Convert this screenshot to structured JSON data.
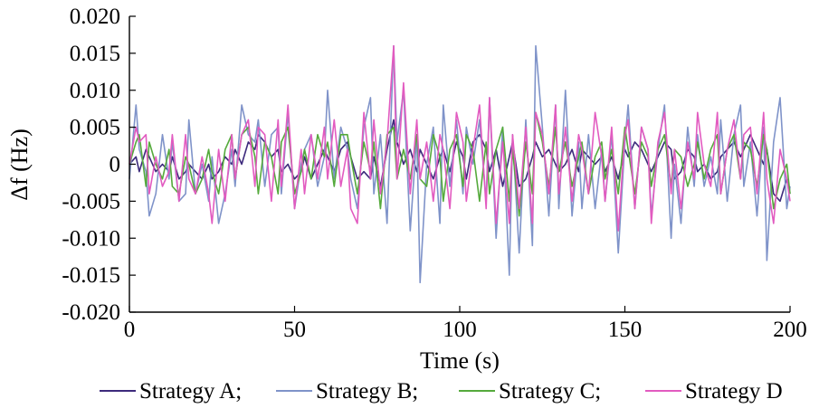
{
  "chart_data": {
    "type": "line",
    "xlabel": "Time (s)",
    "ylabel": "Δf (Hz)",
    "xlim": [
      0,
      200
    ],
    "ylim": [
      -0.02,
      0.02
    ],
    "x_ticks": [
      "0",
      "50",
      "100",
      "150",
      "200"
    ],
    "y_ticks": [
      "-0.020",
      "-0.015",
      "-0.010",
      "-0.005",
      "0",
      "0.005",
      "0.010",
      "0.015",
      "0.020"
    ],
    "grid": false,
    "legend_position": "bottom",
    "x": [
      0,
      2,
      3,
      5,
      6,
      8,
      10,
      12,
      13,
      15,
      17,
      18,
      20,
      22,
      24,
      25,
      27,
      29,
      31,
      32,
      34,
      36,
      38,
      39,
      41,
      43,
      45,
      46,
      48,
      50,
      52,
      53,
      55,
      57,
      59,
      60,
      62,
      64,
      66,
      67,
      69,
      71,
      73,
      74,
      76,
      78,
      80,
      81,
      83,
      85,
      87,
      88,
      90,
      92,
      94,
      95,
      97,
      99,
      101,
      102,
      104,
      106,
      108,
      109,
      111,
      113,
      115,
      116,
      118,
      120,
      122,
      123,
      125,
      127,
      129,
      130,
      132,
      134,
      136,
      137,
      139,
      141,
      143,
      144,
      146,
      148,
      150,
      151,
      153,
      155,
      157,
      158,
      160,
      162,
      164,
      165,
      167,
      169,
      171,
      172,
      174,
      176,
      178,
      179,
      181,
      183,
      185,
      186,
      188,
      190,
      192,
      193,
      195,
      197,
      199,
      200
    ],
    "series": [
      {
        "name": "Strategy A",
        "color": "#3d2a7c",
        "values": [
          0.0,
          0.001,
          -0.001,
          0.002,
          0.001,
          -0.001,
          0.0,
          -0.001,
          0.001,
          -0.002,
          -0.001,
          0.0,
          -0.001,
          -0.002,
          0.0,
          -0.002,
          -0.001,
          0.001,
          0.0,
          0.002,
          0.0,
          0.003,
          0.002,
          0.004,
          0.003,
          0.001,
          0.002,
          -0.001,
          0.0,
          -0.002,
          -0.001,
          0.001,
          -0.002,
          0.0,
          0.002,
          0.001,
          -0.001,
          0.002,
          0.003,
          0.001,
          -0.002,
          -0.001,
          -0.002,
          0.001,
          -0.003,
          0.002,
          0.006,
          0.003,
          0.0,
          0.002,
          -0.001,
          0.002,
          0.0,
          -0.002,
          0.001,
          0.002,
          -0.001,
          0.003,
          0.001,
          -0.002,
          0.003,
          0.004,
          0.002,
          -0.001,
          0.002,
          -0.003,
          0.001,
          0.003,
          -0.003,
          -0.002,
          0.001,
          0.003,
          0.001,
          0.002,
          0.0,
          -0.001,
          0.0,
          0.002,
          -0.001,
          0.002,
          0.001,
          0.0,
          0.001,
          -0.001,
          0.001,
          -0.002,
          0.002,
          0.001,
          0.003,
          0.002,
          0.0,
          -0.001,
          0.001,
          0.003,
          0.002,
          -0.002,
          -0.001,
          0.002,
          0.001,
          -0.001,
          0.0,
          -0.002,
          -0.001,
          0.001,
          0.002,
          0.003,
          0.001,
          0.002,
          0.004,
          0.002,
          0.0,
          0.002,
          -0.004,
          -0.005,
          -0.002,
          -0.004
        ]
      },
      {
        "name": "Strategy B",
        "color": "#7f93c9",
        "values": [
          -0.002,
          0.008,
          0.002,
          -0.001,
          -0.007,
          -0.004,
          0.004,
          -0.002,
          0.003,
          -0.005,
          -0.004,
          0.006,
          -0.004,
          0.0,
          -0.005,
          0.001,
          -0.008,
          -0.004,
          0.002,
          -0.003,
          0.008,
          0.004,
          0.003,
          0.006,
          -0.003,
          0.004,
          0.005,
          -0.004,
          0.007,
          -0.006,
          0.0,
          0.002,
          0.004,
          -0.003,
          0.001,
          0.01,
          -0.002,
          0.005,
          0.002,
          -0.002,
          -0.006,
          0.005,
          0.009,
          -0.004,
          0.004,
          -0.008,
          0.016,
          0.003,
          0.01,
          -0.009,
          0.004,
          -0.016,
          0.0,
          0.005,
          -0.008,
          0.008,
          -0.003,
          0.006,
          -0.004,
          0.005,
          0.0,
          0.006,
          -0.005,
          0.009,
          -0.01,
          0.005,
          -0.015,
          0.004,
          -0.012,
          0.006,
          -0.011,
          0.016,
          0.005,
          -0.007,
          0.008,
          -0.006,
          0.01,
          -0.007,
          0.003,
          -0.006,
          0.004,
          -0.006,
          0.002,
          -0.005,
          0.004,
          -0.012,
          0.003,
          0.008,
          -0.006,
          0.005,
          0.002,
          -0.007,
          0.002,
          0.008,
          -0.01,
          0.0,
          -0.008,
          0.005,
          -0.003,
          0.004,
          -0.003,
          0.001,
          -0.004,
          0.006,
          -0.005,
          0.004,
          0.008,
          -0.003,
          0.003,
          -0.007,
          0.005,
          -0.013,
          0.003,
          0.009,
          -0.006,
          -0.003
        ]
      },
      {
        "name": "Strategy C",
        "color": "#55aa3c",
        "values": [
          0.0,
          0.003,
          0.004,
          -0.003,
          0.003,
          0.0,
          -0.002,
          0.002,
          -0.003,
          -0.004,
          0.001,
          0.0,
          -0.004,
          -0.002,
          0.002,
          -0.001,
          -0.004,
          0.002,
          0.004,
          -0.002,
          0.004,
          0.005,
          0.001,
          -0.004,
          0.003,
          0.001,
          -0.004,
          0.003,
          0.005,
          -0.004,
          -0.001,
          0.002,
          -0.002,
          0.004,
          0.001,
          0.003,
          -0.003,
          0.004,
          0.004,
          0.001,
          -0.004,
          0.003,
          -0.001,
          0.003,
          -0.006,
          0.004,
          0.005,
          -0.002,
          0.002,
          -0.002,
          0.004,
          -0.002,
          -0.003,
          0.004,
          0.001,
          -0.005,
          0.002,
          0.004,
          -0.003,
          0.004,
          0.002,
          -0.005,
          0.003,
          -0.004,
          0.002,
          0.005,
          -0.005,
          0.002,
          -0.007,
          0.003,
          -0.004,
          0.007,
          0.003,
          -0.003,
          0.005,
          -0.001,
          0.003,
          -0.003,
          0.001,
          0.003,
          -0.004,
          0.001,
          0.003,
          -0.002,
          0.002,
          -0.004,
          0.005,
          0.002,
          -0.004,
          0.003,
          0.001,
          -0.003,
          0.002,
          0.004,
          -0.003,
          0.002,
          0.001,
          -0.003,
          0.0,
          0.003,
          -0.002,
          0.002,
          0.004,
          -0.004,
          0.002,
          0.004,
          -0.002,
          0.003,
          0.002,
          -0.003,
          0.004,
          0.002,
          -0.006,
          -0.002,
          0.0,
          -0.004
        ]
      },
      {
        "name": "Strategy D",
        "color": "#e25bc0",
        "values": [
          0.0,
          0.005,
          0.003,
          0.004,
          -0.004,
          0.001,
          -0.003,
          -0.001,
          0.004,
          -0.005,
          0.004,
          -0.002,
          -0.004,
          0.001,
          -0.004,
          -0.008,
          0.002,
          -0.005,
          0.004,
          -0.002,
          0.004,
          0.006,
          -0.003,
          0.005,
          0.004,
          -0.005,
          0.006,
          -0.003,
          0.008,
          -0.006,
          0.002,
          -0.004,
          0.004,
          -0.002,
          0.005,
          -0.002,
          0.006,
          -0.003,
          0.002,
          -0.006,
          -0.008,
          0.007,
          -0.002,
          0.006,
          -0.004,
          0.003,
          0.016,
          -0.002,
          0.011,
          -0.004,
          0.006,
          -0.002,
          0.003,
          -0.005,
          0.004,
          0.002,
          -0.006,
          0.007,
          0.003,
          -0.005,
          0.002,
          0.008,
          -0.006,
          0.009,
          -0.008,
          0.003,
          -0.008,
          0.004,
          -0.006,
          0.005,
          -0.008,
          0.007,
          0.004,
          -0.004,
          0.008,
          -0.004,
          0.005,
          -0.005,
          0.004,
          0.002,
          -0.004,
          0.007,
          0.001,
          -0.005,
          0.005,
          -0.009,
          0.004,
          0.006,
          -0.006,
          0.005,
          0.002,
          -0.008,
          0.003,
          0.007,
          -0.004,
          0.002,
          -0.006,
          0.003,
          -0.002,
          0.007,
          0.0,
          -0.003,
          0.007,
          -0.004,
          0.002,
          0.006,
          -0.002,
          0.004,
          0.005,
          -0.004,
          0.007,
          -0.002,
          -0.008,
          0.002,
          -0.002,
          -0.005
        ]
      }
    ]
  },
  "legend": {
    "entries": [
      "Strategy A;",
      "Strategy B;",
      "Strategy C;",
      "Strategy D"
    ]
  }
}
